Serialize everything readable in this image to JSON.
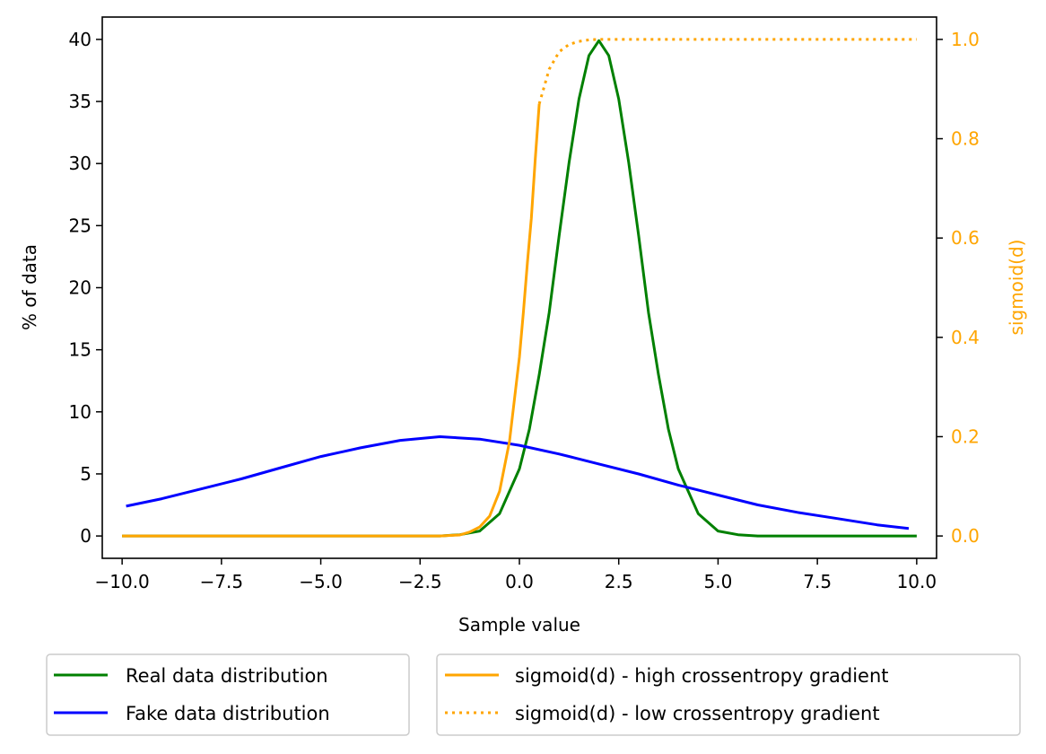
{
  "chart_data": {
    "type": "line",
    "xlabel": "Sample value",
    "ylabel": "% of data",
    "ylabel_right": "sigmoid(d)",
    "xlim": [
      -10.5,
      10.5
    ],
    "ylim": [
      -1.8,
      41.8
    ],
    "ylim_right": [
      -0.045,
      1.045
    ],
    "grid": false,
    "x_ticks": [
      -10,
      -7.5,
      -5,
      -2.5,
      0,
      2.5,
      5,
      7.5,
      10
    ],
    "x_tick_labels": [
      "−10.0",
      "−7.5",
      "−5.0",
      "−2.5",
      "0.0",
      "2.5",
      "5.0",
      "7.5",
      "10.0"
    ],
    "y_ticks": [
      0,
      5,
      10,
      15,
      20,
      25,
      30,
      35,
      40
    ],
    "y_tick_labels": [
      "0",
      "5",
      "10",
      "15",
      "20",
      "25",
      "30",
      "35",
      "40"
    ],
    "y_ticks_right": [
      0,
      0.2,
      0.4,
      0.6,
      0.8,
      1.0
    ],
    "y_tick_labels_right": [
      "0.0",
      "0.2",
      "0.4",
      "0.6",
      "0.8",
      "1.0"
    ],
    "legend_placement": "below",
    "series": [
      {
        "name": "Real data distribution",
        "axis": "left",
        "color": "#008000",
        "style": "solid",
        "x": [
          -10,
          -9,
          -8,
          -7,
          -6,
          -5,
          -4,
          -3,
          -2,
          -1.5,
          -1,
          -0.5,
          0,
          0.25,
          0.5,
          0.75,
          1,
          1.25,
          1.5,
          1.75,
          2,
          2.25,
          2.5,
          2.75,
          3,
          3.25,
          3.5,
          3.75,
          4,
          4.5,
          5,
          5.5,
          6,
          7,
          8,
          9,
          10
        ],
        "y": [
          0,
          0,
          0,
          0,
          0,
          0,
          0,
          0,
          0,
          0.1,
          0.4,
          1.8,
          5.4,
          8.6,
          13.0,
          18.0,
          24.2,
          30.1,
          35.2,
          38.7,
          39.9,
          38.7,
          35.2,
          30.1,
          24.2,
          18.0,
          13.0,
          8.6,
          5.4,
          1.8,
          0.4,
          0.1,
          0,
          0,
          0,
          0,
          0
        ]
      },
      {
        "name": "Fake data distribution",
        "axis": "left",
        "color": "#0000ff",
        "style": "solid",
        "x": [
          -9.9,
          -9,
          -8,
          -7,
          -6,
          -5,
          -4,
          -3,
          -2,
          -1,
          0,
          1,
          2,
          3,
          4,
          5,
          6,
          7,
          8,
          9,
          9.8
        ],
        "y": [
          2.4,
          3.0,
          3.8,
          4.6,
          5.5,
          6.4,
          7.1,
          7.7,
          8.0,
          7.8,
          7.3,
          6.6,
          5.8,
          5.0,
          4.1,
          3.3,
          2.5,
          1.9,
          1.4,
          0.9,
          0.6
        ]
      },
      {
        "name": "sigmoid(d) - high crossentropy gradient",
        "axis": "right",
        "color": "#ffa500",
        "style": "solid",
        "x": [
          -10,
          -5,
          -2,
          -1.5,
          -1.25,
          -1,
          -0.75,
          -0.5,
          -0.25,
          0,
          0.1,
          0.2,
          0.3,
          0.4,
          0.5
        ],
        "y": [
          0,
          0,
          0,
          0.002,
          0.008,
          0.018,
          0.04,
          0.09,
          0.19,
          0.36,
          0.45,
          0.55,
          0.64,
          0.76,
          0.87
        ]
      },
      {
        "name": "sigmoid(d) - low crossentropy gradient",
        "axis": "right",
        "color": "#ffa500",
        "style": "dotted",
        "x": [
          0.5,
          0.75,
          1,
          1.25,
          1.5,
          1.75,
          2,
          3,
          5,
          7.5,
          10
        ],
        "y": [
          0.87,
          0.94,
          0.975,
          0.99,
          0.996,
          0.999,
          1.0,
          1.0,
          1.0,
          1.0,
          1.0
        ]
      }
    ]
  }
}
